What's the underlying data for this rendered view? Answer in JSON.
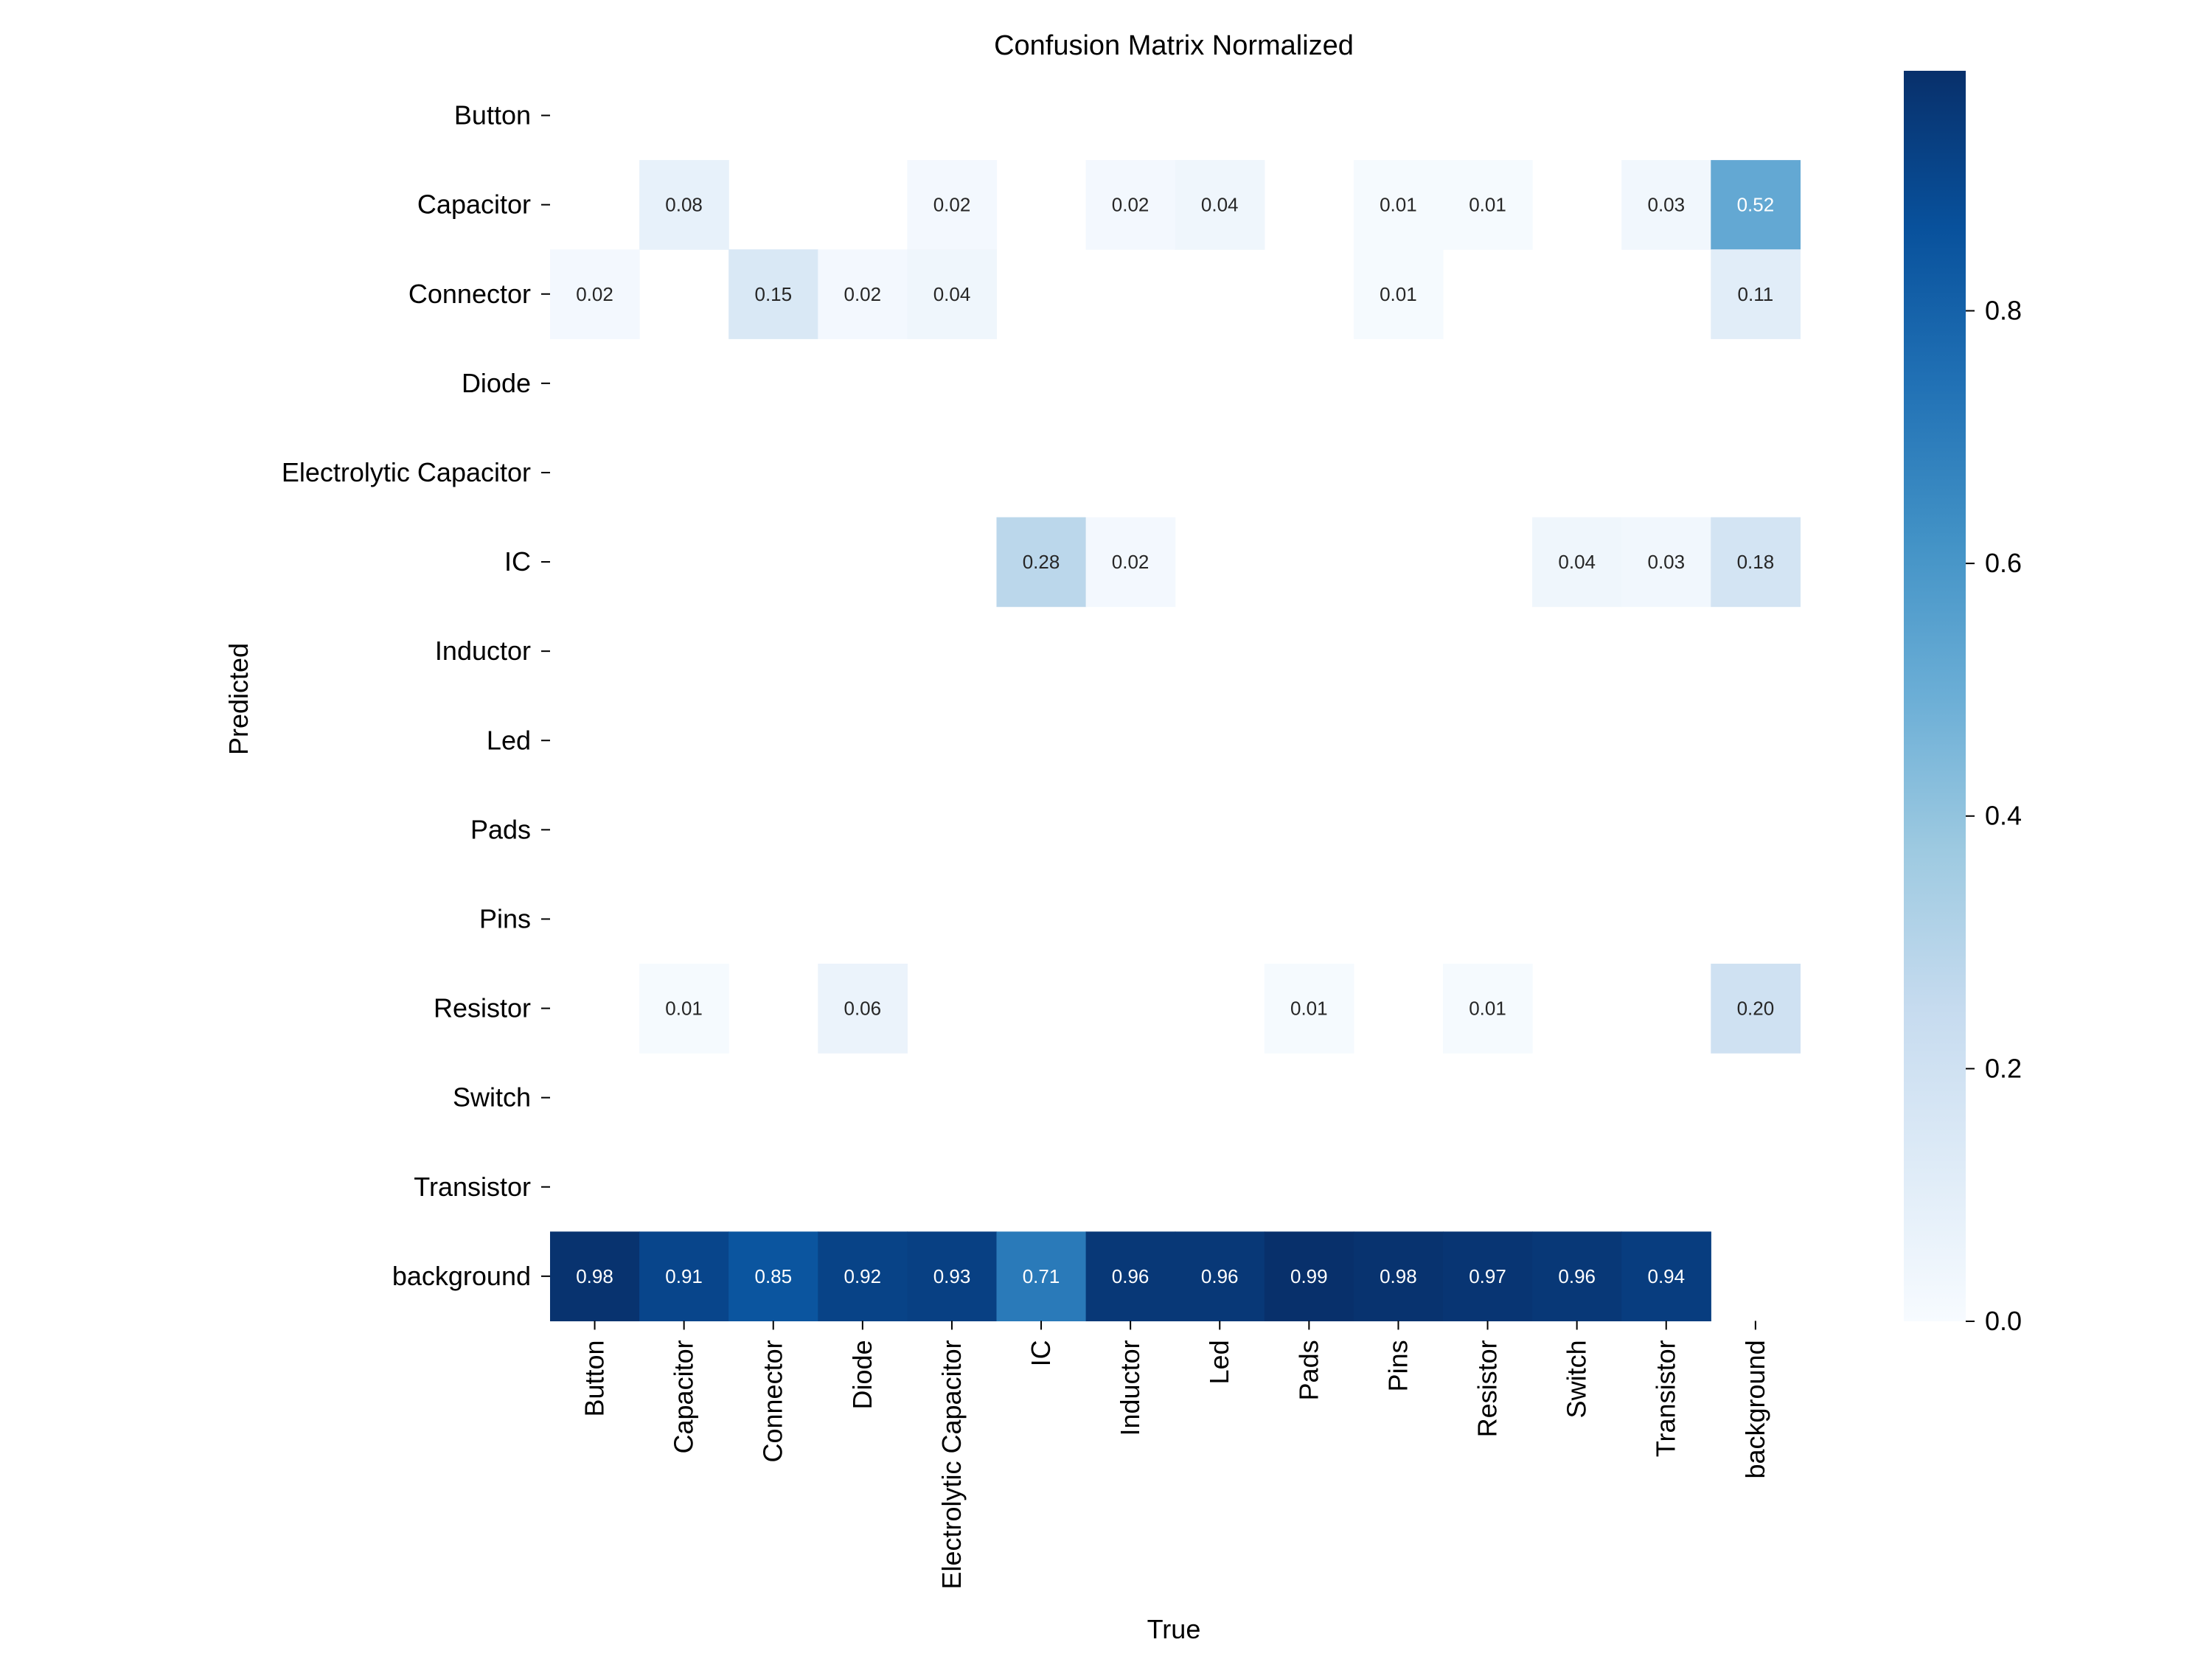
{
  "chart_data": {
    "type": "heatmap",
    "title": "Confusion Matrix Normalized",
    "xlabel": "True",
    "ylabel": "Predicted",
    "x_categories": [
      "Button",
      "Capacitor",
      "Connector",
      "Diode",
      "Electrolytic Capacitor",
      "IC",
      "Inductor",
      "Led",
      "Pads",
      "Pins",
      "Resistor",
      "Switch",
      "Transistor",
      "background"
    ],
    "y_categories": [
      "Button",
      "Capacitor",
      "Connector",
      "Diode",
      "Electrolytic Capacitor",
      "IC",
      "Inductor",
      "Led",
      "Pads",
      "Pins",
      "Resistor",
      "Switch",
      "Transistor",
      "background"
    ],
    "values": [
      [
        null,
        null,
        null,
        null,
        null,
        null,
        null,
        null,
        null,
        null,
        null,
        null,
        null,
        null
      ],
      [
        null,
        0.08,
        null,
        null,
        0.02,
        null,
        0.02,
        0.04,
        null,
        0.01,
        0.01,
        null,
        0.03,
        0.52
      ],
      [
        0.02,
        null,
        0.15,
        0.02,
        0.04,
        null,
        null,
        null,
        null,
        0.01,
        null,
        null,
        null,
        0.11
      ],
      [
        null,
        null,
        null,
        null,
        null,
        null,
        null,
        null,
        null,
        null,
        null,
        null,
        null,
        null
      ],
      [
        null,
        null,
        null,
        null,
        null,
        null,
        null,
        null,
        null,
        null,
        null,
        null,
        null,
        null
      ],
      [
        null,
        null,
        null,
        null,
        null,
        0.28,
        0.02,
        null,
        null,
        null,
        null,
        0.04,
        0.03,
        0.18
      ],
      [
        null,
        null,
        null,
        null,
        null,
        null,
        null,
        null,
        null,
        null,
        null,
        null,
        null,
        null
      ],
      [
        null,
        null,
        null,
        null,
        null,
        null,
        null,
        null,
        null,
        null,
        null,
        null,
        null,
        null
      ],
      [
        null,
        null,
        null,
        null,
        null,
        null,
        null,
        null,
        null,
        null,
        null,
        null,
        null,
        null
      ],
      [
        null,
        null,
        null,
        null,
        null,
        null,
        null,
        null,
        null,
        null,
        null,
        null,
        null,
        null
      ],
      [
        null,
        0.01,
        null,
        0.06,
        null,
        null,
        null,
        null,
        0.01,
        null,
        0.01,
        null,
        null,
        0.2
      ],
      [
        null,
        null,
        null,
        null,
        null,
        null,
        null,
        null,
        null,
        null,
        null,
        null,
        null,
        null
      ],
      [
        null,
        null,
        null,
        null,
        null,
        null,
        null,
        null,
        null,
        null,
        null,
        null,
        null,
        null
      ],
      [
        0.98,
        0.91,
        0.85,
        0.92,
        0.93,
        0.71,
        0.96,
        0.96,
        0.99,
        0.98,
        0.97,
        0.96,
        0.94,
        null
      ]
    ],
    "value_format": "0.00",
    "colormap": "Blues",
    "colorbar": {
      "range": [
        0.0,
        0.99
      ],
      "ticks": [
        0.0,
        0.2,
        0.4,
        0.6,
        0.8
      ],
      "tick_labels": [
        "0.0",
        "0.2",
        "0.4",
        "0.6",
        "0.8"
      ]
    },
    "grid": false,
    "colorbar_placement": "right"
  },
  "colors": {
    "blues": [
      "#f7fbff",
      "#deebf7",
      "#c6dbef",
      "#9ecae1",
      "#6baed6",
      "#4292c6",
      "#2171b5",
      "#08519c",
      "#08306b"
    ],
    "text_dark": "#262626",
    "text_light": "#ffffff"
  }
}
